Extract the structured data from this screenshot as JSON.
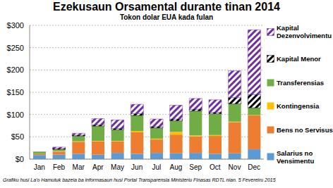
{
  "chart_data": {
    "type": "bar",
    "title": "Ezekusaun Orsamental durante tinan 2014",
    "subtitle": "Tokon dolar EUA kada fulan",
    "annotation": "Grafiku husi La'o Hamutuk bazeia ba informasaun husi Portal Transparensia Ministeriu Finasas RDTL nian. 5 Fevereiru 2015",
    "categories": [
      "Jan",
      "Feb",
      "Mar",
      "Apr",
      "May",
      "Jun",
      "Jul",
      "Aug",
      "Sep",
      "Oct",
      "Nov",
      "Dec"
    ],
    "ylim": [
      0,
      300
    ],
    "yticks": [
      {
        "value": 0,
        "label": "$0"
      },
      {
        "value": 50,
        "label": "$50"
      },
      {
        "value": 100,
        "label": "$100"
      },
      {
        "value": 150,
        "label": "$150"
      },
      {
        "value": 200,
        "label": "$200"
      },
      {
        "value": 250,
        "label": "$250"
      },
      {
        "value": 300,
        "label": "$300"
      }
    ],
    "grid": true,
    "stacked": true,
    "legend": "right",
    "series": [
      {
        "name": "Salarius no Vensimentu",
        "color": "#5B9BD5",
        "values": [
          9,
          10,
          12,
          10,
          14,
          12,
          14,
          13,
          14,
          12,
          13,
          22
        ]
      },
      {
        "name": "Bens no Servisus",
        "color": "#ED7D31",
        "values": [
          3,
          7,
          27,
          30,
          26,
          48,
          30,
          42,
          37,
          40,
          70,
          76
        ]
      },
      {
        "name": "Kontingensia",
        "color": "#FFC000",
        "values": [
          0,
          1,
          1,
          1,
          1,
          3,
          2,
          6,
          2,
          2,
          1,
          1
        ]
      },
      {
        "name": "Transferensias",
        "color": "#70AD47",
        "values": [
          5,
          4,
          12,
          33,
          25,
          35,
          24,
          25,
          55,
          48,
          40,
          16
        ]
      },
      {
        "name": "Kapital Menor",
        "color": "#000000",
        "marker": "hatch",
        "values": [
          0,
          2,
          2,
          3,
          3,
          4,
          3,
          4,
          4,
          3,
          14,
          30
        ]
      },
      {
        "name": "Kapital Dezenvolvimentu",
        "color": "#7030A0",
        "marker": "hatch",
        "values": [
          0,
          3,
          4,
          14,
          19,
          21,
          17,
          31,
          24,
          28,
          60,
          145
        ]
      }
    ]
  }
}
